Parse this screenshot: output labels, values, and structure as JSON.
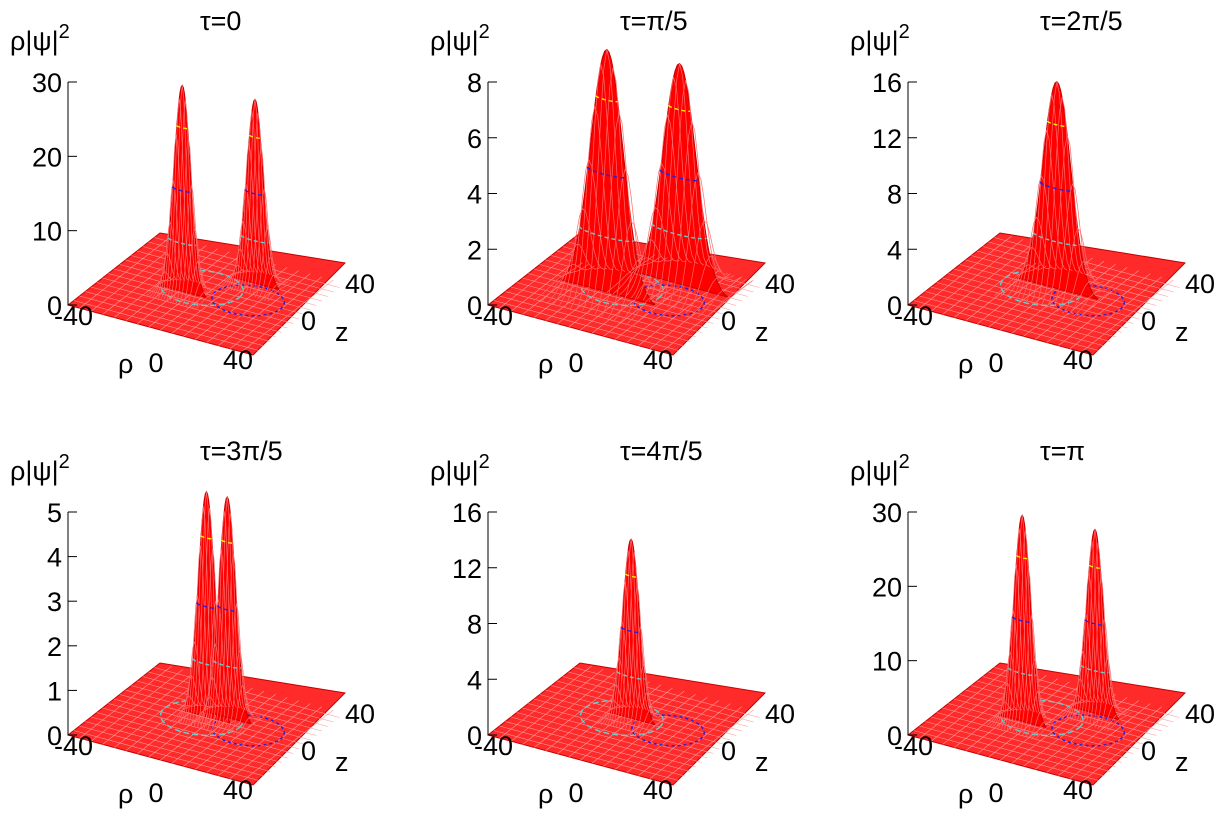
{
  "figure": {
    "title": "",
    "colors": {
      "surface": "#ff0000",
      "surface_dark": "#c80000",
      "base": "#ff2a2a",
      "contour_cyan": "#66cccc",
      "contour_blue": "#2222dd",
      "contour_green": "#88dd22",
      "contour_yellow": "#ffee00",
      "axis": "#000000"
    }
  },
  "chart_data": [
    {
      "type": "surface",
      "title": "τ=0",
      "zlabel": "ρ|ψ|",
      "zlabel_sup": "2",
      "xlabel": "ρ",
      "ylabel": "z",
      "zticks": [
        "0",
        "10",
        "20",
        "30"
      ],
      "zlim": [
        0,
        30
      ],
      "rho_ticks": [
        "-40",
        "0",
        "40"
      ],
      "z_ticks": [
        "0",
        "40"
      ],
      "peaks": [
        {
          "rho": -8,
          "z": -5,
          "height": 28,
          "width": 3.5
        },
        {
          "rho": 12,
          "z": 18,
          "height": 25,
          "width": 3.5
        }
      ]
    },
    {
      "type": "surface",
      "title": "τ=π/5",
      "zlabel": "ρ|ψ|",
      "zlabel_sup": "2",
      "xlabel": "ρ",
      "ylabel": "z",
      "zticks": [
        "0",
        "2",
        "4",
        "6",
        "8"
      ],
      "zlim": [
        0,
        8
      ],
      "rho_ticks": [
        "-40",
        "0",
        "40"
      ],
      "z_ticks": [
        "0",
        "40"
      ],
      "peaks": [
        {
          "rho": -6,
          "z": -5,
          "height": 8.8,
          "width": 7
        },
        {
          "rho": 14,
          "z": 18,
          "height": 8.0,
          "width": 7
        }
      ]
    },
    {
      "type": "surface",
      "title": "τ=2π/5",
      "zlabel": "ρ|ψ|",
      "zlabel_sup": "2",
      "xlabel": "ρ",
      "ylabel": "z",
      "zticks": [
        "0",
        "4",
        "8",
        "12",
        "16"
      ],
      "zlim": [
        0,
        16
      ],
      "rho_ticks": [
        "-40",
        "0",
        "40"
      ],
      "z_ticks": [
        "0",
        "40"
      ],
      "peaks": [
        {
          "rho": 2,
          "z": 5,
          "height": 15,
          "width": 6
        }
      ]
    },
    {
      "type": "surface",
      "title": "τ=3π/5",
      "zlabel": "ρ|ψ|",
      "zlabel_sup": "2",
      "xlabel": "ρ",
      "ylabel": "z",
      "zticks": [
        "0",
        "1",
        "2",
        "3",
        "4",
        "5"
      ],
      "zlim": [
        0,
        5
      ],
      "rho_ticks": [
        "-40",
        "0",
        "40"
      ],
      "z_ticks": [
        "0",
        "40"
      ],
      "peaks": [
        {
          "rho": -2,
          "z": 4,
          "height": 5.1,
          "width": 3.5
        },
        {
          "rho": 5,
          "z": 8,
          "height": 5.0,
          "width": 3.5
        }
      ]
    },
    {
      "type": "surface",
      "title": "τ=4π/5",
      "zlabel": "ρ|ψ|",
      "zlabel_sup": "2",
      "xlabel": "ρ",
      "ylabel": "z",
      "zticks": [
        "0",
        "4",
        "8",
        "12",
        "16"
      ],
      "zlim": [
        0,
        16
      ],
      "rho_ticks": [
        "-40",
        "0",
        "40"
      ],
      "z_ticks": [
        "0",
        "40"
      ],
      "peaks": [
        {
          "rho": 0,
          "z": 4,
          "height": 13,
          "width": 3.5
        }
      ]
    },
    {
      "type": "surface",
      "title": "τ=π",
      "zlabel": "ρ|ψ|",
      "zlabel_sup": "2",
      "xlabel": "ρ",
      "ylabel": "z",
      "zticks": [
        "0",
        "10",
        "20",
        "30"
      ],
      "zlim": [
        0,
        30
      ],
      "rho_ticks": [
        "-40",
        "0",
        "40"
      ],
      "z_ticks": [
        "0",
        "40"
      ],
      "peaks": [
        {
          "rho": -8,
          "z": -5,
          "height": 28,
          "width": 3.5
        },
        {
          "rho": 12,
          "z": 18,
          "height": 25,
          "width": 3.5
        }
      ]
    }
  ]
}
